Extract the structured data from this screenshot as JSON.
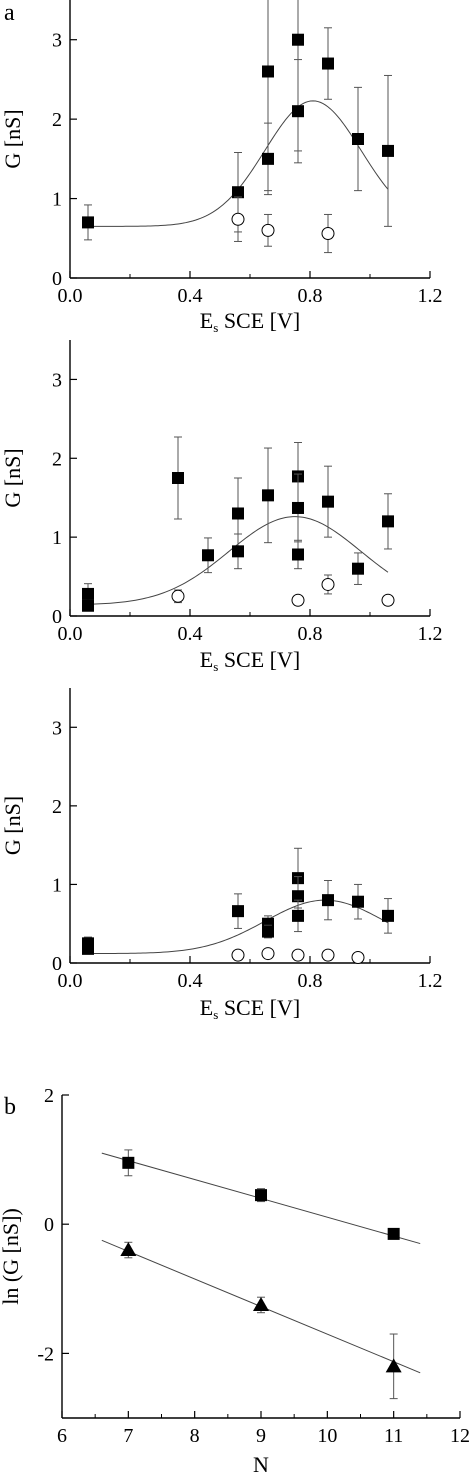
{
  "panel_labels": [
    "a",
    "b"
  ],
  "chart_data": [
    {
      "type": "scatter",
      "xlabel_main": "E",
      "xlabel_sub": "s",
      "xlabel_rest": " SCE [V]",
      "ylabel": "G [nS]",
      "xlim": [
        0.0,
        1.2
      ],
      "ylim": [
        0,
        3.5
      ],
      "xticks": [
        0.0,
        0.4,
        0.8,
        1.2
      ],
      "xtick_labels": [
        "0.0",
        "0.4",
        "0.8",
        "1.2"
      ],
      "yticks": [
        0,
        1,
        2,
        3
      ],
      "ytick_labels": [
        "0",
        "1",
        "2",
        "3"
      ],
      "series": [
        {
          "marker": "filled-square",
          "points": [
            {
              "x": 0.06,
              "y": 0.7,
              "err": 0.22
            },
            {
              "x": 0.56,
              "y": 1.08,
              "err": 0.5
            },
            {
              "x": 0.66,
              "y": 2.6,
              "err": 1.5
            },
            {
              "x": 0.66,
              "y": 1.5,
              "err": 0.45
            },
            {
              "x": 0.76,
              "y": 3.0,
              "err": 1.4
            },
            {
              "x": 0.76,
              "y": 2.1,
              "err": 0.65
            },
            {
              "x": 0.86,
              "y": 2.7,
              "err": 0.45
            },
            {
              "x": 0.96,
              "y": 1.75,
              "err": 0.65
            },
            {
              "x": 1.06,
              "y": 1.6,
              "err": 0.95
            }
          ]
        },
        {
          "marker": "open-circle",
          "points": [
            {
              "x": 0.56,
              "y": 0.74,
              "err": 0.28
            },
            {
              "x": 0.66,
              "y": 0.6,
              "err": 0.2
            },
            {
              "x": 0.86,
              "y": 0.56,
              "err": 0.24
            }
          ]
        }
      ],
      "fit": {
        "x0": 0.06,
        "x1": 1.06,
        "base": 0.65,
        "amp": 1.58,
        "center": 0.81,
        "width": 0.16
      }
    },
    {
      "type": "scatter",
      "xlabel_main": "E",
      "xlabel_sub": "s",
      "xlabel_rest": " SCE [V]",
      "ylabel": "G [nS]",
      "xlim": [
        0.0,
        1.2
      ],
      "ylim": [
        0,
        3.5
      ],
      "xticks": [
        0.0,
        0.4,
        0.8,
        1.2
      ],
      "xtick_labels": [
        "0.0",
        "0.4",
        "0.8",
        "1.2"
      ],
      "yticks": [
        0,
        1,
        2,
        3
      ],
      "ytick_labels": [
        "0",
        "1",
        "2",
        "3"
      ],
      "series": [
        {
          "marker": "filled-square",
          "points": [
            {
              "x": 0.06,
              "y": 0.28,
              "err": 0.13
            },
            {
              "x": 0.06,
              "y": 0.13,
              "err": 0.05
            },
            {
              "x": 0.36,
              "y": 1.75,
              "err": 0.52
            },
            {
              "x": 0.46,
              "y": 0.77,
              "err": 0.22
            },
            {
              "x": 0.56,
              "y": 1.3,
              "err": 0.45
            },
            {
              "x": 0.56,
              "y": 0.82,
              "err": 0.22
            },
            {
              "x": 0.66,
              "y": 1.53,
              "err": 0.6
            },
            {
              "x": 0.76,
              "y": 1.77,
              "err": 0.43
            },
            {
              "x": 0.76,
              "y": 1.37,
              "err": 0.43
            },
            {
              "x": 0.76,
              "y": 0.78,
              "err": 0.18
            },
            {
              "x": 0.86,
              "y": 1.45,
              "err": 0.45
            },
            {
              "x": 0.96,
              "y": 0.6,
              "err": 0.2
            },
            {
              "x": 1.06,
              "y": 1.2,
              "err": 0.35
            }
          ]
        },
        {
          "marker": "open-circle",
          "points": [
            {
              "x": 0.36,
              "y": 0.25,
              "err": 0.08
            },
            {
              "x": 0.76,
              "y": 0.2,
              "err": 0.05
            },
            {
              "x": 0.86,
              "y": 0.4,
              "err": 0.12
            },
            {
              "x": 1.06,
              "y": 0.2,
              "err": 0.05
            }
          ]
        }
      ],
      "fit": {
        "x0": 0.06,
        "x1": 1.06,
        "base": 0.14,
        "amp": 1.12,
        "center": 0.75,
        "width": 0.22
      }
    },
    {
      "type": "scatter",
      "xlabel_main": "E",
      "xlabel_sub": "s",
      "xlabel_rest": " SCE [V]",
      "ylabel": "G [nS]",
      "xlim": [
        0.0,
        1.2
      ],
      "ylim": [
        0,
        3.5
      ],
      "xticks": [
        0.0,
        0.4,
        0.8,
        1.2
      ],
      "xtick_labels": [
        "0.0",
        "0.4",
        "0.8",
        "1.2"
      ],
      "yticks": [
        0,
        1,
        2,
        3
      ],
      "ytick_labels": [
        "0",
        "1",
        "2",
        "3"
      ],
      "series": [
        {
          "marker": "filled-square",
          "points": [
            {
              "x": 0.06,
              "y": 0.25,
              "err": 0.08
            },
            {
              "x": 0.06,
              "y": 0.18,
              "err": 0.05
            },
            {
              "x": 0.56,
              "y": 0.66,
              "err": 0.22
            },
            {
              "x": 0.66,
              "y": 0.5,
              "err": 0.1
            },
            {
              "x": 0.66,
              "y": 0.4,
              "err": 0.08
            },
            {
              "x": 0.76,
              "y": 1.08,
              "err": 0.38
            },
            {
              "x": 0.76,
              "y": 0.85,
              "err": 0.25
            },
            {
              "x": 0.76,
              "y": 0.6,
              "err": 0.2
            },
            {
              "x": 0.86,
              "y": 0.8,
              "err": 0.25
            },
            {
              "x": 0.96,
              "y": 0.78,
              "err": 0.22
            },
            {
              "x": 1.06,
              "y": 0.6,
              "err": 0.22
            }
          ]
        },
        {
          "marker": "open-circle",
          "points": [
            {
              "x": 0.56,
              "y": 0.1,
              "err": 0.04
            },
            {
              "x": 0.66,
              "y": 0.12,
              "err": 0.04
            },
            {
              "x": 0.76,
              "y": 0.1,
              "err": 0.04
            },
            {
              "x": 0.86,
              "y": 0.1,
              "err": 0.04
            },
            {
              "x": 0.96,
              "y": 0.07,
              "err": 0.03
            }
          ]
        }
      ],
      "fit": {
        "x0": 0.06,
        "x1": 1.06,
        "base": 0.12,
        "amp": 0.68,
        "center": 0.85,
        "width": 0.2
      }
    },
    {
      "type": "scatter",
      "xlabel": "N",
      "ylabel": "ln (G [nS])",
      "xlim": [
        6,
        12
      ],
      "ylim": [
        -3,
        2
      ],
      "xticks": [
        6,
        7,
        8,
        9,
        10,
        11,
        12
      ],
      "xtick_labels": [
        "6",
        "7",
        "8",
        "9",
        "10",
        "11",
        "12"
      ],
      "yticks": [
        2,
        0,
        -2
      ],
      "ytick_labels": [
        "2",
        "0",
        "-2"
      ],
      "series": [
        {
          "marker": "filled-square",
          "points": [
            {
              "x": 7,
              "y": 0.95,
              "err": 0.2
            },
            {
              "x": 9,
              "y": 0.45,
              "err": 0.1
            },
            {
              "x": 11,
              "y": -0.15,
              "err": 0.06
            }
          ],
          "fit": {
            "x0": 6.6,
            "x1": 11.4,
            "y0": 1.1,
            "y1": -0.3
          }
        },
        {
          "marker": "filled-triangle",
          "points": [
            {
              "x": 7,
              "y": -0.4,
              "err": 0.12
            },
            {
              "x": 9,
              "y": -1.25,
              "err": 0.12
            },
            {
              "x": 11,
              "y": -2.2,
              "err": 0.5
            }
          ],
          "fit": {
            "x0": 6.6,
            "x1": 11.4,
            "y0": -0.25,
            "y1": -2.3
          }
        }
      ]
    }
  ]
}
